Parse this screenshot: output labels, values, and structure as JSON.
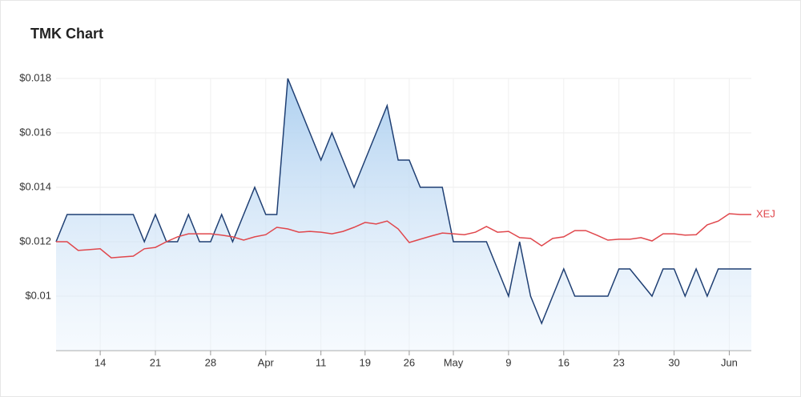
{
  "chart_data": {
    "type": "line",
    "title": "TMK Chart",
    "categories": [
      null,
      null,
      null,
      null,
      "14",
      null,
      null,
      null,
      null,
      "21",
      null,
      null,
      null,
      null,
      "28",
      null,
      null,
      null,
      null,
      "Apr",
      null,
      null,
      null,
      null,
      "11",
      null,
      null,
      null,
      "19",
      null,
      null,
      null,
      "26",
      null,
      null,
      null,
      "May",
      null,
      null,
      null,
      null,
      "9",
      null,
      null,
      null,
      null,
      "16",
      null,
      null,
      null,
      null,
      "23",
      null,
      null,
      null,
      null,
      "30",
      null,
      null,
      null,
      null,
      "Jun",
      null,
      null
    ],
    "series": [
      {
        "color": "#1f3f73",
        "area": true,
        "values": [
          0.012,
          0.013,
          0.013,
          0.013,
          0.013,
          0.013,
          0.013,
          0.013,
          0.012,
          0.013,
          0.012,
          0.012,
          0.013,
          0.012,
          0.012,
          0.013,
          0.012,
          0.013,
          0.014,
          0.013,
          0.013,
          0.018,
          0.017,
          0.016,
          0.015,
          0.016,
          0.015,
          0.014,
          0.015,
          0.016,
          0.017,
          0.015,
          0.015,
          0.014,
          0.014,
          0.014,
          0.012,
          0.012,
          0.012,
          0.012,
          0.011,
          0.01,
          0.012,
          0.01,
          0.009,
          0.01,
          0.011,
          0.01,
          0.01,
          0.01,
          0.01,
          0.011,
          0.011,
          0.0105,
          0.01,
          0.011,
          0.011,
          0.01,
          0.011,
          0.01,
          0.011,
          0.011,
          0.011,
          0.011
        ]
      },
      {
        "name": "XEJ",
        "color": "#e0474c",
        "area": false,
        "values": [
          0.012,
          0.012,
          0.01168,
          0.01171,
          0.01174,
          0.01141,
          0.01144,
          0.01147,
          0.01174,
          0.01179,
          0.012,
          0.01218,
          0.01229,
          0.01229,
          0.01229,
          0.01224,
          0.01218,
          0.01206,
          0.01218,
          0.01226,
          0.01253,
          0.01247,
          0.01235,
          0.01238,
          0.01235,
          0.01229,
          0.01238,
          0.01253,
          0.01271,
          0.01265,
          0.01276,
          0.01247,
          0.01197,
          0.01209,
          0.01221,
          0.01232,
          0.01229,
          0.01226,
          0.01235,
          0.01256,
          0.01235,
          0.01238,
          0.01215,
          0.01212,
          0.01185,
          0.01212,
          0.01218,
          0.01241,
          0.01241,
          0.01224,
          0.01206,
          0.01209,
          0.01209,
          0.01215,
          0.01203,
          0.01229,
          0.01229,
          0.01224,
          0.01226,
          0.01262,
          0.01276,
          0.01303,
          0.013,
          0.013
        ]
      }
    ],
    "ylim": [
      0.008,
      0.018
    ],
    "yticks": [
      {
        "value": 0.01,
        "label": "$0.01"
      },
      {
        "value": 0.012,
        "label": "$0.012"
      },
      {
        "value": 0.014,
        "label": "$0.014"
      },
      {
        "value": 0.016,
        "label": "$0.016"
      },
      {
        "value": 0.018,
        "label": "$0.018"
      }
    ],
    "grid": true
  }
}
